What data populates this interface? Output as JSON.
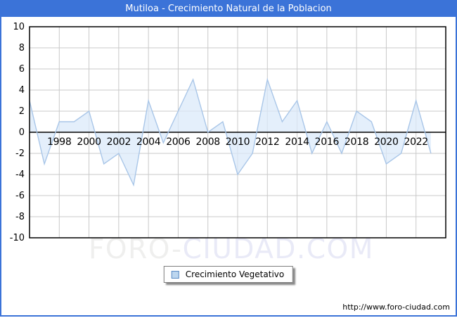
{
  "titlebar": {
    "title": "Mutiloa - Crecimiento Natural de la Poblacion"
  },
  "watermark": {
    "part1": "FORO-",
    "part2": "CIUDAD.COM"
  },
  "legend": {
    "label": "Crecimiento Vegetativo"
  },
  "footer": {
    "url": "http://www.foro-ciudad.com"
  },
  "colors": {
    "titlebar": "#3B73D8",
    "line": "#A9C6E8",
    "fill": "#DBE9F9",
    "grid": "#C9C9C9",
    "axis": "#000000",
    "legend_swatch_fill": "#BCD6EF",
    "legend_swatch_border": "#5B8BC4"
  },
  "chart_data": {
    "type": "area",
    "title": "Mutiloa - Crecimiento Natural de la Poblacion",
    "x": [
      1996,
      1997,
      1998,
      1999,
      2000,
      2001,
      2002,
      2003,
      2004,
      2005,
      2006,
      2007,
      2008,
      2009,
      2010,
      2011,
      2012,
      2013,
      2014,
      2015,
      2016,
      2017,
      2018,
      2019,
      2020,
      2021,
      2022,
      2023
    ],
    "series": [
      {
        "name": "Crecimiento Vegetativo",
        "values": [
          3,
          -3,
          1,
          1,
          2,
          -3,
          -2,
          -5,
          3,
          -1,
          2,
          5,
          0,
          1,
          -4,
          -2,
          5,
          1,
          3,
          -2,
          1,
          -2,
          2,
          1,
          -3,
          -2,
          3,
          -2
        ]
      }
    ],
    "xlim": [
      1996,
      2024
    ],
    "ylim": [
      -10,
      10
    ],
    "yticks": [
      10,
      8,
      6,
      4,
      2,
      0,
      -2,
      -4,
      -6,
      -8,
      -10
    ],
    "xticks": [
      1998,
      2000,
      2002,
      2004,
      2006,
      2008,
      2010,
      2012,
      2014,
      2016,
      2018,
      2020,
      2022
    ],
    "grid": true,
    "baseline": 0,
    "legend_position": "bottom-center"
  }
}
